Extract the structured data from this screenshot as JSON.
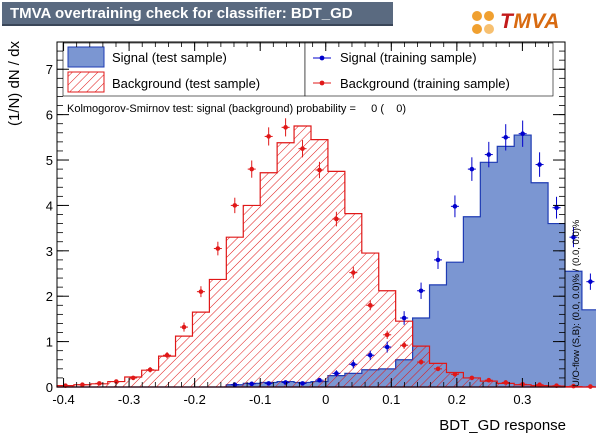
{
  "title": "TMVA overtraining check for classifier: BDT_GD",
  "logo": {
    "first_letter": "T",
    "rest": "MVA"
  },
  "ks_text": "Kolmogorov-Smirnov test: signal (background) probability =     0 (    0)",
  "overflow_text": "U/O-flow (S,B): (0.0, 0.0)% / (0.0, 0.0)%",
  "colors": {
    "signal_fill": "#7b96d2",
    "signal_line": "#1f3cb4",
    "background_line": "#e01818",
    "signal_points": "#0000cc",
    "background_points": "#e01818",
    "title_bg": "#5a6a80"
  },
  "chart_data": {
    "type": "histogram",
    "xlabel": "BDT_GD response",
    "ylabel": "(1/N) dN / dx",
    "xlim": [
      -0.41,
      0.365
    ],
    "ylim": [
      0,
      7.6
    ],
    "x_ticks": [
      "-0.4",
      "-0.3",
      "-0.2",
      "-0.1",
      "0",
      "0.1",
      "0.2",
      "0.3"
    ],
    "x_tick_values": [
      -0.4,
      -0.3,
      -0.2,
      -0.1,
      0,
      0.1,
      0.2,
      0.3
    ],
    "y_ticks": [
      "0",
      "1",
      "2",
      "3",
      "4",
      "5",
      "6",
      "7"
    ],
    "y_tick_values": [
      0,
      1,
      2,
      3,
      4,
      5,
      6,
      7
    ],
    "bin_edges_start": -0.41,
    "bin_width": 0.025833,
    "legend": [
      {
        "label": "Signal (test sample)",
        "style": "filled-box"
      },
      {
        "label": "Background (test sample)",
        "style": "hatched-box"
      },
      {
        "label": "Signal (training sample)",
        "style": "marker-blue"
      },
      {
        "label": "Background (training sample)",
        "style": "marker-red"
      }
    ],
    "series": [
      {
        "name": "Signal (test sample)",
        "kind": "hist-filled",
        "values": [
          0,
          0,
          0,
          0,
          0,
          0,
          0,
          0,
          0,
          0,
          0.05,
          0.08,
          0.1,
          0.12,
          0.1,
          0.12,
          0.25,
          0.3,
          0.38,
          0.4,
          0.6,
          1.52,
          2.25,
          2.75,
          3.75,
          4.95,
          5.3,
          5.55,
          4.5,
          3.6,
          2.55,
          1.7,
          1.02,
          0.62,
          0.28,
          0.1
        ]
      },
      {
        "name": "Background (test sample)",
        "kind": "hist-hatched",
        "values": [
          0.03,
          0.05,
          0.07,
          0.12,
          0.22,
          0.37,
          0.68,
          1.12,
          1.65,
          2.37,
          3.3,
          4.0,
          4.72,
          5.38,
          5.75,
          5.45,
          4.75,
          3.82,
          2.95,
          2.12,
          1.45,
          0.9,
          0.52,
          0.32,
          0.2,
          0.13,
          0.08,
          0.05,
          0.03,
          0.02,
          0.01,
          0,
          0,
          0,
          0,
          0
        ]
      },
      {
        "name": "Signal (training sample)",
        "kind": "points",
        "values": [
          null,
          null,
          null,
          null,
          null,
          null,
          null,
          null,
          null,
          null,
          0.05,
          0.07,
          0.08,
          0.1,
          0.08,
          0.15,
          0.3,
          0.5,
          0.7,
          0.88,
          1.52,
          2.12,
          2.8,
          3.98,
          4.8,
          5.12,
          5.5,
          5.58,
          4.9,
          3.95,
          3.3,
          2.32,
          1.3,
          0.58,
          0.28,
          0.15
        ],
        "errors": [
          0,
          0,
          0,
          0,
          0,
          0,
          0,
          0,
          0,
          0,
          0.04,
          0.04,
          0.04,
          0.04,
          0.04,
          0.05,
          0.07,
          0.09,
          0.1,
          0.12,
          0.15,
          0.18,
          0.2,
          0.24,
          0.26,
          0.28,
          0.29,
          0.29,
          0.27,
          0.24,
          0.22,
          0.18,
          0.14,
          0.09,
          0.06,
          0.04
        ]
      },
      {
        "name": "Background (training sample)",
        "kind": "points",
        "values": [
          0.03,
          0.05,
          0.08,
          0.12,
          0.2,
          0.38,
          0.7,
          1.32,
          2.1,
          3.05,
          4.0,
          4.8,
          5.52,
          5.72,
          5.25,
          4.78,
          3.7,
          2.52,
          1.8,
          1.15,
          0.92,
          0.55,
          0.4,
          0.28,
          0.2,
          0.15,
          0.1,
          0.06,
          0.05,
          0.03,
          0.02,
          0.01,
          0.01,
          null,
          null,
          null
        ],
        "errors": [
          0.01,
          0.02,
          0.03,
          0.03,
          0.04,
          0.06,
          0.07,
          0.1,
          0.12,
          0.15,
          0.17,
          0.19,
          0.2,
          0.2,
          0.19,
          0.18,
          0.16,
          0.13,
          0.11,
          0.09,
          0.08,
          0.06,
          0.05,
          0.04,
          0.04,
          0.03,
          0.03,
          0.02,
          0.02,
          0.01,
          0.01,
          0.01,
          0.01,
          0,
          0,
          0
        ]
      }
    ]
  }
}
